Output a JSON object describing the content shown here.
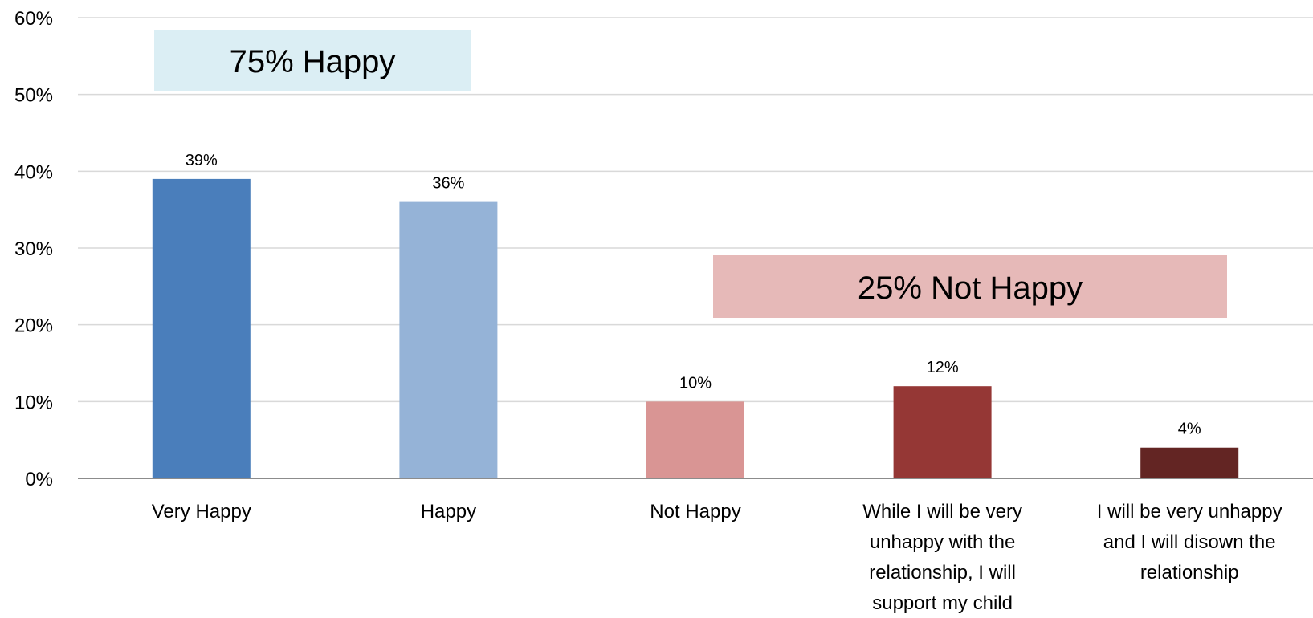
{
  "chart_data": {
    "type": "bar",
    "title": "",
    "xlabel": "",
    "ylabel": "",
    "ylim": [
      0,
      60
    ],
    "y_ticks": [
      0,
      10,
      20,
      30,
      40,
      50,
      60
    ],
    "y_tick_labels": [
      "0%",
      "10%",
      "20%",
      "30%",
      "40%",
      "50%",
      "60%"
    ],
    "grid": true,
    "categories": [
      [
        "Very Happy"
      ],
      [
        "Happy"
      ],
      [
        "Not Happy"
      ],
      [
        "While I will be very",
        "unhappy with the",
        "relationship, I will",
        "support my child"
      ],
      [
        "I will be very unhappy",
        "and I will disown the",
        "relationship"
      ]
    ],
    "values": [
      39,
      36,
      10,
      12,
      4
    ],
    "data_labels": [
      "39%",
      "36%",
      "10%",
      "12%",
      "4%"
    ],
    "bar_colors": [
      "#4A7EBB",
      "#95B3D7",
      "#D99594",
      "#953735",
      "#632523"
    ],
    "annotations": [
      {
        "text": "75% Happy",
        "color": "#DBEEF4"
      },
      {
        "text": "25% Not Happy",
        "color": "#E6B9B8"
      }
    ]
  }
}
